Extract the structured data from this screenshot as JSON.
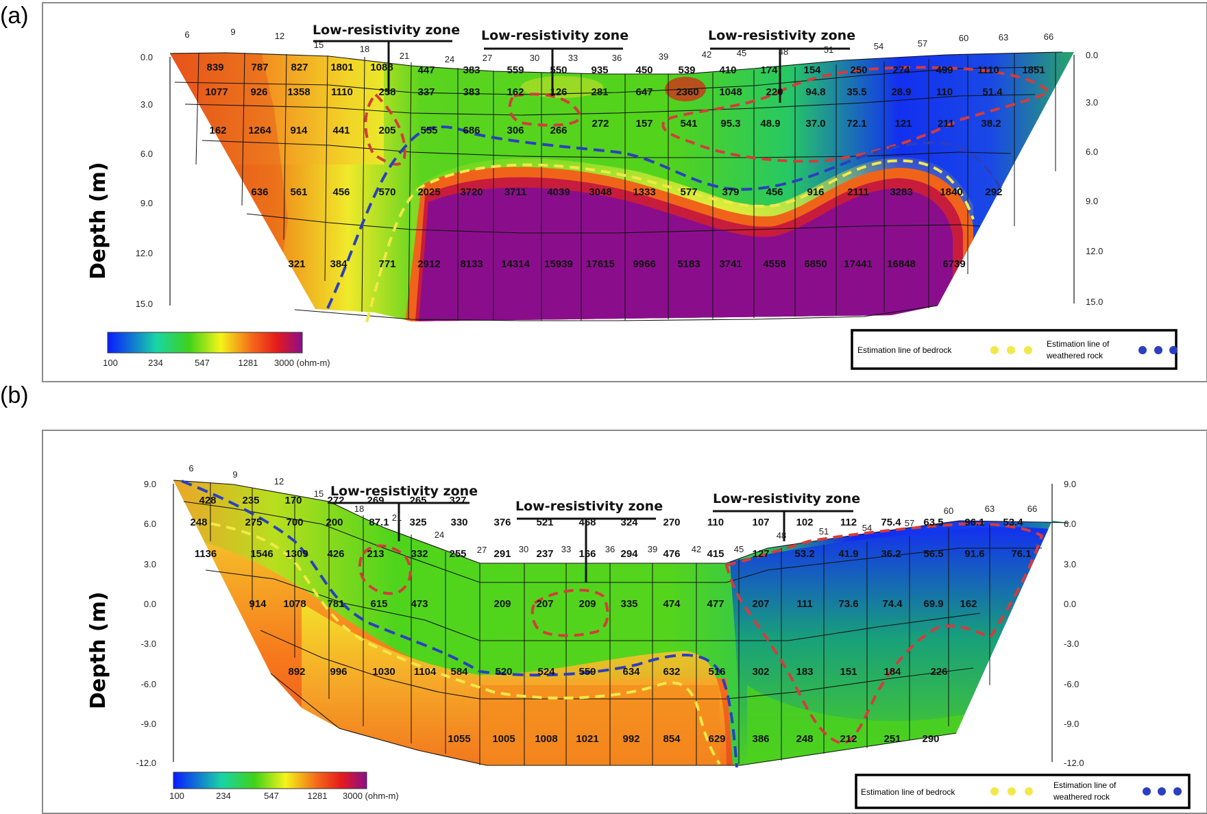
{
  "figure": {
    "panels": [
      {
        "id": "a",
        "label": "(a)",
        "ylabel": "Depth (m)",
        "top_ticks": [
          "6",
          "9",
          "12",
          "15",
          "18",
          "21",
          "24",
          "27",
          "30",
          "33",
          "36",
          "39",
          "42",
          "45",
          "48",
          "51",
          "54",
          "57",
          "60",
          "63",
          "66"
        ],
        "depth_ticks": [
          "0.0",
          "3.0",
          "6.0",
          "9.0",
          "12.0",
          "15.0"
        ],
        "zones": [
          "Low-resistivity zone",
          "Low-resistivity zone",
          "Low-resistivity zone"
        ],
        "colorbar_ticks": [
          "100",
          "234",
          "547",
          "1281",
          "3000 (ohm-m)"
        ],
        "legend": {
          "bedrock": "Estimation   line  of  bedrock",
          "weathered_1": "Estimation   line  of",
          "weathered_2": "weathered   rock"
        },
        "rows": [
          [
            "839",
            "787",
            "827",
            "1801",
            "1088",
            "447",
            "383",
            "559",
            "550",
            "935",
            "450",
            "539",
            "410",
            "174",
            "154",
            "250",
            "274",
            "499",
            "1110",
            "1851"
          ],
          [
            "1077",
            "926",
            "1358",
            "1110",
            "258",
            "337",
            "383",
            "162",
            "126",
            "281",
            "647",
            "2360",
            "1048",
            "220",
            "94.8",
            "35.5",
            "28.9",
            "110",
            "51.4"
          ],
          [
            "162",
            "1264",
            "914",
            "441",
            "205",
            "555",
            "686",
            "306",
            "266",
            "272",
            "157",
            "541",
            "95.3",
            "48.9",
            "37.0",
            "72.1",
            "121",
            "211",
            "38.2"
          ],
          [
            "636",
            "561",
            "456",
            "570",
            "2025",
            "3720",
            "3711",
            "4039",
            "3048",
            "1333",
            "577",
            "379",
            "456",
            "916",
            "2111",
            "3283",
            "1840",
            "292"
          ],
          [
            "321",
            "384",
            "771",
            "2912",
            "8133",
            "14314",
            "15939",
            "17615",
            "9966",
            "5183",
            "3741",
            "4558",
            "6850",
            "17441",
            "16848",
            "6739"
          ]
        ]
      },
      {
        "id": "b",
        "label": "(b)",
        "ylabel": "Depth (m)",
        "top_ticks": [
          "6",
          "9",
          "12",
          "15",
          "18",
          "21",
          "24",
          "27",
          "30",
          "33",
          "36",
          "39",
          "42",
          "45",
          "48",
          "51",
          "54",
          "57",
          "60",
          "63",
          "66"
        ],
        "depth_ticks": [
          "9.0",
          "6.0",
          "3.0",
          "0.0",
          "-3.0",
          "-6.0",
          "-9.0",
          "-12.0"
        ],
        "zones": [
          "Low-resistivity zone",
          "Low-resistivity zone",
          "Low-resistivity zone"
        ],
        "colorbar_ticks": [
          "100",
          "234",
          "547",
          "1281",
          "3000 (ohm-m)"
        ],
        "legend": {
          "bedrock": "Estimation   line  of  bedrock",
          "weathered_1": "Estimation   line  of",
          "weathered_2": "weathered   rock"
        },
        "rows": [
          [
            "428",
            "235",
            "170",
            "272",
            "269",
            "265",
            "327"
          ],
          [
            "248",
            "275",
            "700",
            "200",
            "87.1",
            "325",
            "330",
            "376",
            "521",
            "468",
            "324",
            "270",
            "110",
            "107",
            "102",
            "112",
            "75.4",
            "63.5",
            "96.1",
            "53.4"
          ],
          [
            "1136",
            "1546",
            "1309",
            "426",
            "213",
            "332",
            "255",
            "291",
            "237",
            "166",
            "294",
            "476",
            "415",
            "127",
            "53.2",
            "41.9",
            "36.2",
            "56.5",
            "91.6",
            "76.1"
          ],
          [
            "914",
            "1078",
            "781",
            "615",
            "473",
            "209",
            "207",
            "209",
            "335",
            "474",
            "477",
            "207",
            "111",
            "73.6",
            "74.4",
            "69.9",
            "162"
          ],
          [
            "892",
            "996",
            "1030",
            "1104",
            "584",
            "520",
            "524",
            "559",
            "634",
            "632",
            "516",
            "302",
            "183",
            "151",
            "184",
            "226"
          ],
          [
            "1055",
            "1005",
            "1008",
            "1021",
            "992",
            "854",
            "629",
            "386",
            "248",
            "212",
            "251",
            "290"
          ]
        ]
      }
    ]
  },
  "colors": {
    "blue": "#0a1aff",
    "green": "#3fd21a",
    "yellow": "#f4f41a",
    "orange": "#f56a1a",
    "red": "#e41a1a",
    "purple": "#8a0e8c",
    "zone_outline": "#d43c3c",
    "bedrock_line": "#f2e84a",
    "weathered_line": "#2b3fbf"
  }
}
